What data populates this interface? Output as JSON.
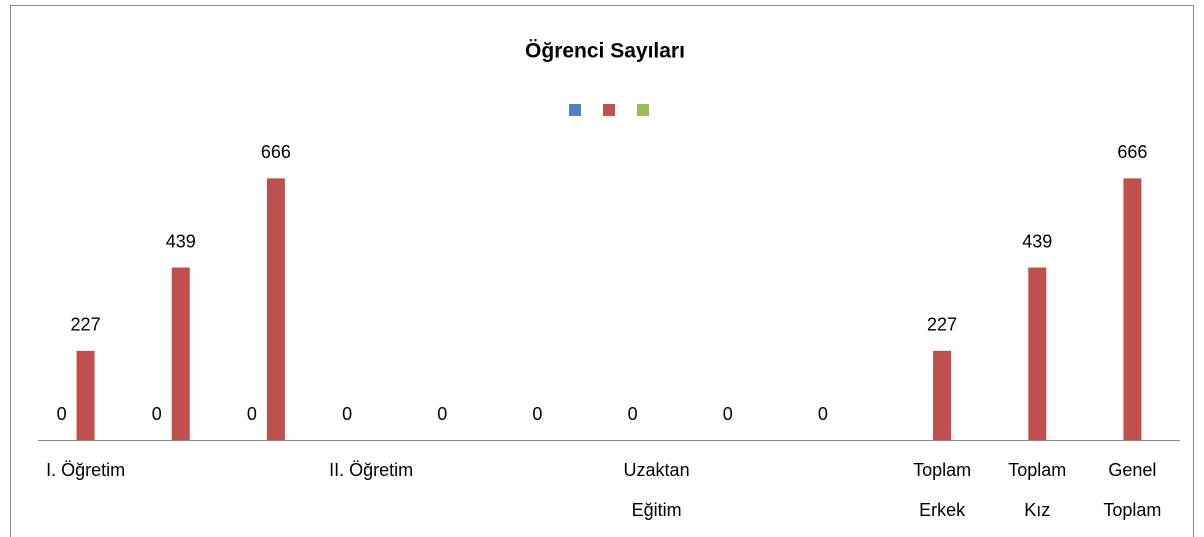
{
  "chart_data": {
    "type": "bar",
    "title": "Öğrenci Sayıları",
    "categories": [
      "I. Öğretim",
      null,
      null,
      "II. Öğretim",
      null,
      null,
      "Uzaktan Eğitim",
      null,
      null,
      "Toplam Erkek",
      "Toplam Kız",
      "Genel Toplam"
    ],
    "series": [
      {
        "color": "#4f81bd",
        "values": [
          0,
          0,
          0,
          0,
          0,
          0,
          0,
          0,
          0,
          null,
          null,
          null
        ]
      },
      {
        "color": "#c0504d",
        "values": [
          227,
          439,
          666,
          null,
          null,
          null,
          null,
          null,
          null,
          227,
          439,
          666
        ]
      },
      {
        "color": "#9bbb59",
        "values": [
          null,
          null,
          null,
          null,
          null,
          null,
          null,
          null,
          null,
          null,
          null,
          null
        ]
      }
    ],
    "ylim": [
      0,
      700
    ],
    "legend": "top"
  }
}
